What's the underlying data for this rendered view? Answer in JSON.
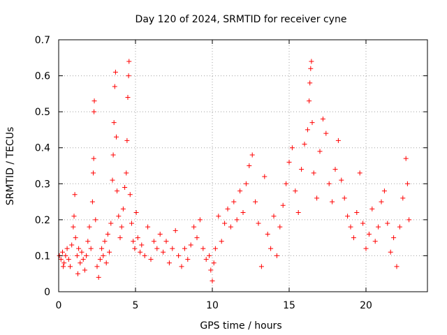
{
  "chart_data": {
    "type": "scatter",
    "title": "Day 120 of 2024, SRMTID for receiver cyne",
    "xlabel": "GPS time / hours",
    "ylabel": "SRMTID / TECUs",
    "xlim": [
      0,
      24
    ],
    "ylim": [
      0,
      0.7
    ],
    "xticks": [
      0,
      5,
      10,
      15,
      20
    ],
    "yticks": [
      0,
      0.1,
      0.2,
      0.3,
      0.4,
      0.5,
      0.6,
      0.7
    ],
    "xtick_labels": [
      "0",
      "5",
      "10",
      "15",
      "20"
    ],
    "ytick_labels": [
      "0",
      "0.1",
      "0.2",
      "0.3",
      "0.4",
      "0.5",
      "0.6",
      "0.7"
    ],
    "grid": true,
    "marker": "+",
    "marker_color": "#ff0000",
    "series": [
      {
        "name": "SRMTID",
        "points": [
          [
            0.05,
            0.1
          ],
          [
            0.15,
            0.09
          ],
          [
            0.25,
            0.11
          ],
          [
            0.35,
            0.08
          ],
          [
            0.45,
            0.1
          ],
          [
            0.55,
            0.12
          ],
          [
            0.65,
            0.09
          ],
          [
            0.75,
            0.07
          ],
          [
            0.85,
            0.13
          ],
          [
            0.95,
            0.18
          ],
          [
            1.0,
            0.21
          ],
          [
            1.05,
            0.27
          ],
          [
            1.1,
            0.15
          ],
          [
            1.2,
            0.1
          ],
          [
            1.3,
            0.12
          ],
          [
            1.4,
            0.08
          ],
          [
            1.5,
            0.11
          ],
          [
            1.6,
            0.09
          ],
          [
            1.7,
            0.06
          ],
          [
            1.8,
            0.1
          ],
          [
            1.9,
            0.14
          ],
          [
            2.0,
            0.18
          ],
          [
            2.1,
            0.12
          ],
          [
            2.2,
            0.25
          ],
          [
            2.25,
            0.33
          ],
          [
            2.28,
            0.37
          ],
          [
            2.3,
            0.5
          ],
          [
            2.32,
            0.53
          ],
          [
            2.4,
            0.2
          ],
          [
            2.5,
            0.07
          ],
          [
            2.6,
            0.04
          ],
          [
            2.7,
            0.09
          ],
          [
            2.8,
            0.12
          ],
          [
            2.9,
            0.1
          ],
          [
            3.0,
            0.14
          ],
          [
            3.1,
            0.08
          ],
          [
            3.2,
            0.16
          ],
          [
            3.3,
            0.11
          ],
          [
            3.4,
            0.19
          ],
          [
            3.5,
            0.31
          ],
          [
            3.55,
            0.38
          ],
          [
            3.6,
            0.47
          ],
          [
            3.65,
            0.57
          ],
          [
            3.7,
            0.61
          ],
          [
            3.75,
            0.43
          ],
          [
            3.8,
            0.28
          ],
          [
            3.9,
            0.21
          ],
          [
            4.0,
            0.15
          ],
          [
            4.1,
            0.18
          ],
          [
            4.2,
            0.23
          ],
          [
            4.3,
            0.29
          ],
          [
            4.4,
            0.33
          ],
          [
            4.45,
            0.42
          ],
          [
            4.5,
            0.54
          ],
          [
            4.55,
            0.6
          ],
          [
            4.58,
            0.64
          ],
          [
            4.65,
            0.27
          ],
          [
            4.75,
            0.19
          ],
          [
            4.85,
            0.14
          ],
          [
            4.95,
            0.12
          ],
          [
            5.05,
            0.22
          ],
          [
            5.15,
            0.15
          ],
          [
            5.3,
            0.11
          ],
          [
            5.4,
            0.13
          ],
          [
            5.6,
            0.1
          ],
          [
            5.8,
            0.18
          ],
          [
            6.0,
            0.09
          ],
          [
            6.2,
            0.14
          ],
          [
            6.4,
            0.12
          ],
          [
            6.6,
            0.16
          ],
          [
            6.8,
            0.11
          ],
          [
            7.0,
            0.14
          ],
          [
            7.2,
            0.08
          ],
          [
            7.4,
            0.12
          ],
          [
            7.6,
            0.17
          ],
          [
            7.8,
            0.1
          ],
          [
            8.0,
            0.07
          ],
          [
            8.2,
            0.12
          ],
          [
            8.4,
            0.09
          ],
          [
            8.6,
            0.13
          ],
          [
            8.8,
            0.18
          ],
          [
            9.0,
            0.15
          ],
          [
            9.2,
            0.2
          ],
          [
            9.4,
            0.12
          ],
          [
            9.6,
            0.09
          ],
          [
            9.8,
            0.1
          ],
          [
            9.9,
            0.06
          ],
          [
            10.0,
            0.03
          ],
          [
            10.1,
            0.08
          ],
          [
            10.2,
            0.12
          ],
          [
            10.4,
            0.21
          ],
          [
            10.6,
            0.14
          ],
          [
            10.8,
            0.19
          ],
          [
            11.0,
            0.23
          ],
          [
            11.2,
            0.18
          ],
          [
            11.4,
            0.25
          ],
          [
            11.6,
            0.2
          ],
          [
            11.8,
            0.28
          ],
          [
            12.0,
            0.22
          ],
          [
            12.2,
            0.3
          ],
          [
            12.4,
            0.35
          ],
          [
            12.6,
            0.38
          ],
          [
            12.8,
            0.25
          ],
          [
            13.0,
            0.19
          ],
          [
            13.2,
            0.07
          ],
          [
            13.4,
            0.32
          ],
          [
            13.6,
            0.16
          ],
          [
            13.8,
            0.12
          ],
          [
            14.0,
            0.21
          ],
          [
            14.2,
            0.1
          ],
          [
            14.4,
            0.18
          ],
          [
            14.6,
            0.24
          ],
          [
            14.8,
            0.3
          ],
          [
            15.0,
            0.36
          ],
          [
            15.2,
            0.4
          ],
          [
            15.4,
            0.28
          ],
          [
            15.6,
            0.22
          ],
          [
            15.8,
            0.34
          ],
          [
            16.0,
            0.41
          ],
          [
            16.2,
            0.45
          ],
          [
            16.3,
            0.53
          ],
          [
            16.35,
            0.58
          ],
          [
            16.4,
            0.62
          ],
          [
            16.45,
            0.64
          ],
          [
            16.5,
            0.47
          ],
          [
            16.6,
            0.33
          ],
          [
            16.8,
            0.26
          ],
          [
            17.0,
            0.39
          ],
          [
            17.2,
            0.48
          ],
          [
            17.4,
            0.44
          ],
          [
            17.6,
            0.3
          ],
          [
            17.8,
            0.25
          ],
          [
            18.0,
            0.34
          ],
          [
            18.2,
            0.42
          ],
          [
            18.4,
            0.31
          ],
          [
            18.6,
            0.26
          ],
          [
            18.8,
            0.21
          ],
          [
            19.0,
            0.18
          ],
          [
            19.2,
            0.15
          ],
          [
            19.4,
            0.22
          ],
          [
            19.6,
            0.33
          ],
          [
            19.8,
            0.19
          ],
          [
            20.0,
            0.12
          ],
          [
            20.2,
            0.16
          ],
          [
            20.4,
            0.23
          ],
          [
            20.6,
            0.14
          ],
          [
            20.8,
            0.18
          ],
          [
            21.0,
            0.25
          ],
          [
            21.2,
            0.28
          ],
          [
            21.4,
            0.19
          ],
          [
            21.6,
            0.11
          ],
          [
            21.8,
            0.15
          ],
          [
            22.0,
            0.07
          ],
          [
            22.2,
            0.18
          ],
          [
            22.4,
            0.26
          ],
          [
            22.6,
            0.37
          ],
          [
            22.7,
            0.3
          ],
          [
            22.8,
            0.2
          ],
          [
            0.3,
            0.07
          ],
          [
            1.25,
            0.05
          ]
        ]
      }
    ]
  }
}
